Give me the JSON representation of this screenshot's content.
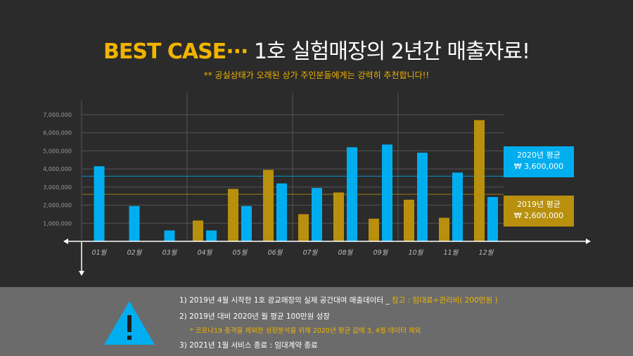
{
  "header": {
    "title_accent": "BEST CASE···",
    "title_rest": "1호 실험매장의 2년간 매출자료!",
    "subtitle": "** 공실상태가 오래된 상가 주인분들에게는 강력히 추천합니다!!"
  },
  "chart_data": {
    "type": "bar",
    "categories": [
      "01월",
      "02월",
      "03월",
      "04월",
      "05월",
      "06월",
      "07월",
      "08월",
      "09월",
      "10월",
      "11월",
      "12월"
    ],
    "series": [
      {
        "name": "2019년",
        "color": "#b8900e",
        "values": [
          null,
          null,
          null,
          1150000,
          2900000,
          3950000,
          1500000,
          2700000,
          1250000,
          2300000,
          1300000,
          6700000
        ]
      },
      {
        "name": "2020년",
        "color": "#00aeef",
        "values": [
          4150000,
          1950000,
          600000,
          600000,
          1950000,
          3200000,
          2950000,
          5200000,
          5350000,
          4900000,
          3800000,
          2450000
        ]
      }
    ],
    "y_ticks": [
      "1,000,000",
      "2,000,000",
      "3,000,000",
      "4,000,000",
      "5,000,000",
      "6,000,000",
      "7,000,000"
    ],
    "ylim": [
      0,
      7000000
    ],
    "grid": true,
    "averages": [
      {
        "label": "2020년 평균",
        "value_text": "₩ 3,600,000",
        "value": 3600000,
        "color": "#00aeef"
      },
      {
        "label": "2019년 평균",
        "value_text": "₩ 2,600,000",
        "value": 2600000,
        "color": "#b8900e"
      }
    ]
  },
  "notes": {
    "line1": "1)  2019년 4월 시작한 1호 광교매장의 실제 공간대여 매출데이터 _",
    "line1_highlight": "참고 : 임대료+관리비( 200만원 )",
    "line2": "2)  2019년 대비 2020년 월 평균 100만원 성장",
    "line2_sub": "* 코로나19 충격을 제외한 성장분석을 위해 2020년 평균 값에 3, 4월 데이터 제외",
    "line3": "3) 2021년 1월 서비스 종료 : 임대계약 종료"
  },
  "colors": {
    "accent": "#f0b400",
    "blue": "#00aeef",
    "gold": "#b8900e",
    "background": "#2b2b2b",
    "panel": "#6b6b6b"
  },
  "icons": {
    "warning": "warning-triangle-icon"
  }
}
